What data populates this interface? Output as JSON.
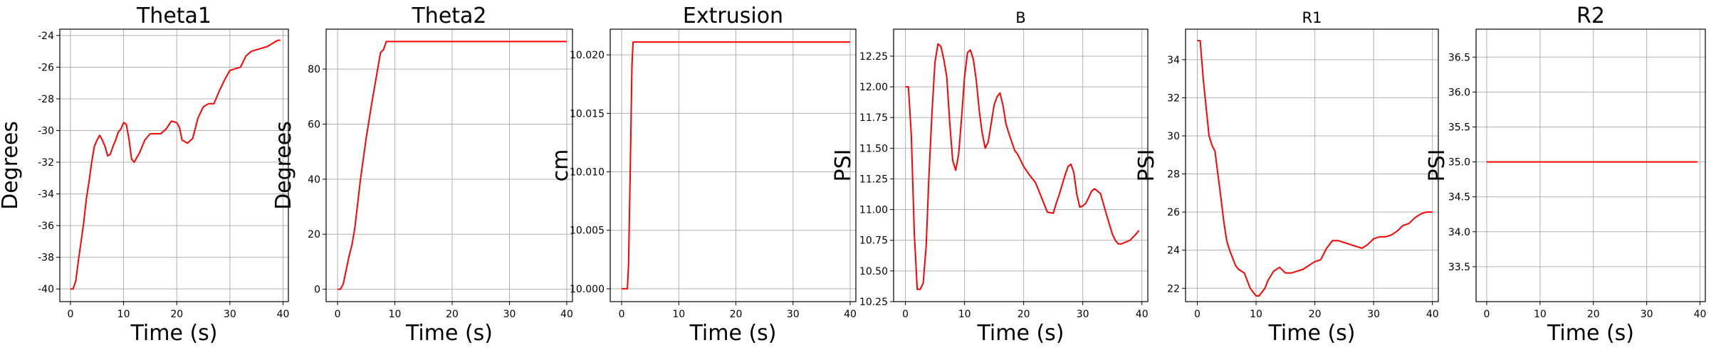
{
  "chart_data": [
    {
      "type": "line",
      "title": "Theta1",
      "xlabel": "Time (s)",
      "ylabel": "Degrees",
      "xlim": [
        -2,
        41
      ],
      "ylim": [
        -40.8,
        -23.6
      ],
      "xticks": [
        0,
        10,
        20,
        30,
        40
      ],
      "yticks": [
        -40,
        -38,
        -36,
        -34,
        -32,
        -30,
        -28,
        -26,
        -24
      ],
      "grid": true,
      "color": "#ff0000",
      "series": [
        {
          "x": [
            0,
            0.5,
            1,
            1.5,
            2,
            2.5,
            3,
            3.5,
            4,
            4.5,
            5,
            5.5,
            6,
            6.5,
            7,
            7.5,
            8,
            8.5,
            9,
            9.5,
            10,
            10.5,
            11,
            11.5,
            12,
            12.5,
            13,
            13.5,
            14,
            15,
            16,
            17,
            18,
            19,
            20,
            20.5,
            21,
            22,
            23,
            24,
            25,
            26,
            27,
            28,
            29,
            30,
            31,
            32,
            33,
            34,
            35,
            36,
            37,
            38,
            39,
            39.5
          ],
          "y": [
            -40,
            -40,
            -39.5,
            -38.2,
            -37,
            -35.8,
            -34.3,
            -33.2,
            -32,
            -31,
            -30.6,
            -30.3,
            -30.6,
            -31,
            -31.6,
            -31.5,
            -31,
            -30.6,
            -30.1,
            -29.9,
            -29.5,
            -29.6,
            -30.5,
            -31.8,
            -32,
            -31.7,
            -31.4,
            -31,
            -30.6,
            -30.2,
            -30.2,
            -30.2,
            -29.9,
            -29.4,
            -29.5,
            -29.8,
            -30.6,
            -30.8,
            -30.5,
            -29.2,
            -28.5,
            -28.3,
            -28.3,
            -27.5,
            -26.8,
            -26.2,
            -26.1,
            -26,
            -25.3,
            -25,
            -24.9,
            -24.8,
            -24.7,
            -24.5,
            -24.3,
            -24.3
          ]
        }
      ]
    },
    {
      "type": "line",
      "title": "Theta2",
      "xlabel": "Time (s)",
      "ylabel": "Degrees",
      "xlim": [
        -2,
        41
      ],
      "ylim": [
        -4.5,
        94.5
      ],
      "xticks": [
        0,
        10,
        20,
        30,
        40
      ],
      "yticks": [
        0,
        20,
        40,
        60,
        80
      ],
      "grid": true,
      "color": "#ff0000",
      "series": [
        {
          "x": [
            0,
            0.5,
            1,
            1.5,
            2,
            2.5,
            3,
            4,
            5,
            6,
            7,
            7.5,
            8,
            8.5,
            9,
            10,
            20,
            30,
            40
          ],
          "y": [
            0,
            0,
            2,
            7,
            12,
            16,
            22,
            40,
            55,
            68,
            80,
            86,
            87,
            90,
            90,
            90,
            90,
            90,
            90
          ]
        }
      ]
    },
    {
      "type": "line",
      "title": "Extrusion",
      "xlabel": "Time (s)",
      "ylabel": "cm",
      "xlim": [
        -2,
        41
      ],
      "ylim": [
        9.9989,
        10.0222
      ],
      "xticks": [
        0,
        10,
        20,
        30,
        40
      ],
      "yticks": [
        10.0,
        10.005,
        10.01,
        10.015,
        10.02
      ],
      "ytick_labels": [
        "10.000",
        "10.005",
        "10.010",
        "10.015",
        "10.020"
      ],
      "grid": true,
      "color": "#ff0000",
      "series": [
        {
          "x": [
            0,
            0.5,
            1,
            1.2,
            1.5,
            1.8,
            2,
            10,
            20,
            30,
            40
          ],
          "y": [
            10.0,
            10.0,
            10.0,
            10.002,
            10.01,
            10.019,
            10.0211,
            10.0211,
            10.0211,
            10.0211,
            10.0211
          ]
        }
      ]
    },
    {
      "type": "line",
      "title": "B",
      "xlabel": "Time (s)",
      "ylabel": "PSI",
      "xlim": [
        -2,
        41
      ],
      "ylim": [
        10.25,
        12.47
      ],
      "xticks": [
        0,
        10,
        20,
        30,
        40
      ],
      "yticks": [
        10.25,
        10.5,
        10.75,
        11.0,
        11.25,
        11.5,
        11.75,
        12.0,
        12.25
      ],
      "ytick_labels": [
        "10.25",
        "10.50",
        "10.75",
        "11.00",
        "11.25",
        "11.50",
        "11.75",
        "12.00",
        "12.25"
      ],
      "grid": true,
      "color": "#ff0000",
      "series": [
        {
          "x": [
            0,
            0.5,
            1,
            1.5,
            2,
            2.5,
            3,
            3.5,
            4,
            4.5,
            5,
            5.5,
            6,
            6.5,
            7,
            7.5,
            8,
            8.5,
            9,
            9.5,
            10,
            10.5,
            11,
            11.5,
            12,
            12.5,
            13,
            13.5,
            14,
            14.5,
            15,
            15.5,
            16,
            16.5,
            17,
            17.5,
            18,
            18.5,
            19,
            19.5,
            20,
            21,
            22,
            23,
            24,
            25,
            25.5,
            26,
            26.5,
            27,
            27.5,
            28,
            28.5,
            29,
            29.5,
            30,
            30.5,
            31,
            31.5,
            32,
            32.5,
            33,
            34,
            35,
            35.5,
            36,
            36.5,
            37,
            37.5,
            38,
            39,
            39.5
          ],
          "y": [
            12.0,
            12.0,
            11.6,
            10.8,
            10.35,
            10.35,
            10.4,
            10.7,
            11.3,
            11.8,
            12.2,
            12.35,
            12.33,
            12.22,
            12.08,
            11.7,
            11.4,
            11.32,
            11.45,
            11.75,
            12.08,
            12.28,
            12.3,
            12.22,
            12.05,
            11.8,
            11.62,
            11.5,
            11.55,
            11.7,
            11.85,
            11.92,
            11.95,
            11.85,
            11.7,
            11.62,
            11.55,
            11.48,
            11.45,
            11.4,
            11.35,
            11.28,
            11.22,
            11.1,
            10.98,
            10.97,
            11.05,
            11.12,
            11.2,
            11.28,
            11.35,
            11.37,
            11.3,
            11.12,
            11.02,
            11.03,
            11.05,
            11.1,
            11.15,
            11.17,
            11.15,
            11.13,
            10.96,
            10.8,
            10.75,
            10.72,
            10.72,
            10.73,
            10.74,
            10.75,
            10.8,
            10.83
          ]
        }
      ]
    },
    {
      "type": "line",
      "title": "R1",
      "xlabel": "Time (s)",
      "ylabel": "PSI",
      "xlim": [
        -2,
        41
      ],
      "ylim": [
        21.3,
        35.6
      ],
      "xticks": [
        0,
        10,
        20,
        30,
        40
      ],
      "yticks": [
        22,
        24,
        26,
        28,
        30,
        32,
        34
      ],
      "grid": true,
      "color": "#ff0000",
      "series": [
        {
          "x": [
            0,
            0.5,
            1,
            1.5,
            2,
            2.5,
            3,
            3.5,
            4,
            4.5,
            5,
            5.5,
            6,
            6.5,
            7,
            7.5,
            8,
            8.5,
            9,
            9.5,
            10,
            10.5,
            11,
            11.5,
            12,
            13,
            14,
            15,
            16,
            17,
            18,
            19,
            20,
            21,
            22,
            23,
            24,
            25,
            26,
            27,
            28,
            29,
            30,
            31,
            32,
            33,
            34,
            35,
            36,
            37,
            38,
            39,
            40
          ],
          "y": [
            35,
            35,
            33,
            31.5,
            30,
            29.5,
            29.2,
            28,
            26.8,
            25.5,
            24.5,
            24,
            23.6,
            23.2,
            23,
            22.9,
            22.8,
            22.4,
            22,
            21.8,
            21.6,
            21.6,
            21.8,
            22,
            22.4,
            22.9,
            23.1,
            22.8,
            22.8,
            22.9,
            23,
            23.2,
            23.4,
            23.5,
            24.1,
            24.5,
            24.5,
            24.4,
            24.3,
            24.2,
            24.1,
            24.3,
            24.6,
            24.7,
            24.7,
            24.8,
            25,
            25.3,
            25.4,
            25.7,
            25.9,
            26,
            26
          ]
        }
      ]
    },
    {
      "type": "line",
      "title": "R2",
      "xlabel": "Time (s)",
      "ylabel": "PSI",
      "xlim": [
        -2,
        41
      ],
      "ylim": [
        33.0,
        36.9
      ],
      "xticks": [
        0,
        10,
        20,
        30,
        40
      ],
      "yticks": [
        33.5,
        34.0,
        34.5,
        35.0,
        35.5,
        36.0,
        36.5
      ],
      "ytick_labels": [
        "33.5",
        "34.0",
        "34.5",
        "35.0",
        "35.5",
        "36.0",
        "36.5"
      ],
      "grid": true,
      "color": "#ff0000",
      "series": [
        {
          "x": [
            0,
            10,
            20,
            30,
            39.5
          ],
          "y": [
            35,
            35,
            35,
            35,
            35
          ]
        }
      ]
    }
  ]
}
